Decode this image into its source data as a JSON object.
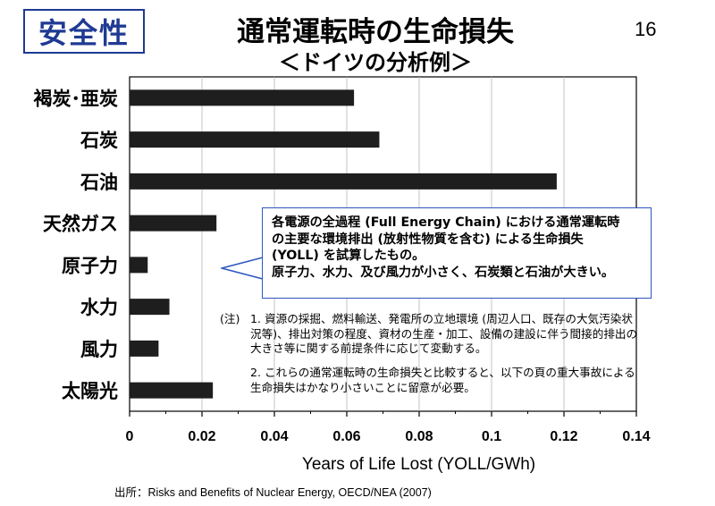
{
  "header": {
    "badge": "安全性",
    "title": "通常運転時の生命損失",
    "subtitle": "＜ドイツの分析例＞",
    "page_number": "16"
  },
  "callout": {
    "lines": [
      "各電源の全過程 (Full Energy Chain) における通常運転時",
      "の主要な環境排出 (放射性物質を含む) による生命損失",
      "(YOLL) を試算したもの。",
      "原子力、水力、及び風力が小さく、石炭類と石油が大きい。"
    ]
  },
  "notes": {
    "tag": "(注)",
    "n1": "1. 資源の採掘、燃料輸送、発電所の立地環境 (周辺人口、既存の大気汚染状況等)、排出対策の程度、資材の生産・加工、設備の建設に伴う間接的排出の大きさ等に関する前提条件に応じて変動する。",
    "n2": "2. これらの通常運転時の生命損失と比較すると、以下の頁の重大事故による生命損失はかなり小さいことに留意が必要。"
  },
  "source": "出所：Risks and Benefits of Nuclear Energy, OECD/NEA (2007)",
  "chart_data": {
    "type": "bar",
    "orientation": "horizontal",
    "categories": [
      "褐炭･亜炭",
      "石炭",
      "石油",
      "天然ガス",
      "原子力",
      "水力",
      "風力",
      "太陽光"
    ],
    "values": [
      0.062,
      0.069,
      0.118,
      0.024,
      0.005,
      0.011,
      0.008,
      0.023
    ],
    "xlabel": "Years of Life Lost (YOLL/GWh)",
    "ylabel": "",
    "xlim": [
      0,
      0.14
    ],
    "xticks": [
      0,
      0.02,
      0.04,
      0.06,
      0.08,
      0.1,
      0.12,
      0.14
    ],
    "xtick_labels": [
      "0",
      "0.02",
      "0.04",
      "0.06",
      "0.08",
      "0.1",
      "0.12",
      "0.14"
    ],
    "grid": "vertical",
    "bar_color": "#1e1e1e"
  }
}
